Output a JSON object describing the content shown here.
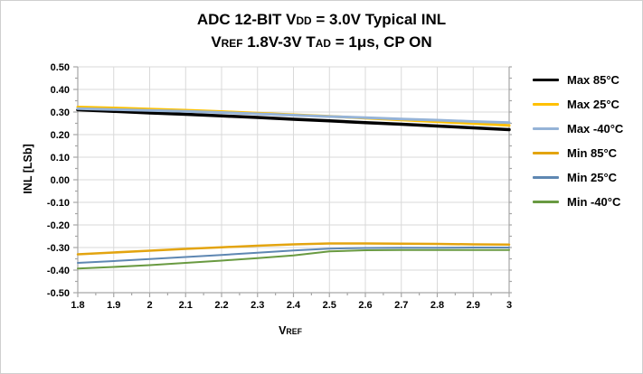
{
  "window": {
    "background": "#FFFFFF",
    "border_color": "#CFCFCF"
  },
  "title": {
    "line1_segments": [
      {
        "text": "ADC 12-BIT V"
      },
      {
        "text": "DD",
        "small": true
      },
      {
        "text": " = 3.0V Typical INL"
      }
    ],
    "line2_segments": [
      {
        "text": "V"
      },
      {
        "text": "REF",
        "small": true
      },
      {
        "text": " 1.8V-3V T"
      },
      {
        "text": "AD",
        "small": true
      },
      {
        "text": " = 1μs, CP ON"
      }
    ]
  },
  "chart_data": {
    "type": "line",
    "title": "ADC 12-BIT VDD = 3.0V Typical INL  VREF 1.8V-3V TAD = 1μs, CP ON",
    "xlabel": "VREF",
    "xlabel_segments": [
      {
        "text": "V"
      },
      {
        "text": "REF",
        "small": true
      }
    ],
    "ylabel": "INL [LSb]",
    "xlim": [
      1.8,
      3.0
    ],
    "ylim": [
      -0.5,
      0.5
    ],
    "x": [
      1.8,
      1.9,
      2.0,
      2.1,
      2.2,
      2.3,
      2.4,
      2.5,
      2.6,
      2.7,
      2.8,
      2.9,
      3.0
    ],
    "xtick_labels": [
      "1.8",
      "1.9",
      "2",
      "2.1",
      "2.2",
      "2.3",
      "2.4",
      "2.5",
      "2.6",
      "2.7",
      "2.8",
      "2.9",
      "3"
    ],
    "ytick_values": [
      0.5,
      0.4,
      0.3,
      0.2,
      0.1,
      0.0,
      -0.1,
      -0.2,
      -0.3,
      -0.4,
      -0.5
    ],
    "ytick_labels": [
      "0.50",
      "0.40",
      "0.30",
      "0.20",
      "0.10",
      "0.00",
      "-0.10",
      "-0.20",
      "-0.30",
      "-0.40",
      "-0.50"
    ],
    "minor_tick_step": 0.05,
    "grid": true,
    "legend_position": "right",
    "grid_color": "#D9D9D9",
    "axis_color": "#A6A6A6",
    "label_color": "#000000",
    "series": [
      {
        "name": "Max 85°C",
        "color": "#000000",
        "line_width": 3.5,
        "values": [
          0.31,
          0.303,
          0.296,
          0.29,
          0.283,
          0.276,
          0.268,
          0.261,
          0.253,
          0.246,
          0.238,
          0.23,
          0.222
        ]
      },
      {
        "name": "Max 25°C",
        "color": "#FFC000",
        "line_width": 3,
        "values": [
          0.322,
          0.318,
          0.313,
          0.308,
          0.302,
          0.295,
          0.288,
          0.281,
          0.273,
          0.265,
          0.257,
          0.249,
          0.241
        ]
      },
      {
        "name": "Max -40°C",
        "color": "#95B3D7",
        "line_width": 3,
        "values": [
          0.315,
          0.311,
          0.307,
          0.303,
          0.298,
          0.292,
          0.286,
          0.28,
          0.275,
          0.269,
          0.264,
          0.258,
          0.253
        ]
      },
      {
        "name": "Min 85°C",
        "color": "#E3A40F",
        "line_width": 2.5,
        "values": [
          -0.33,
          -0.322,
          -0.314,
          -0.306,
          -0.299,
          -0.292,
          -0.286,
          -0.282,
          -0.282,
          -0.283,
          -0.284,
          -0.286,
          -0.287
        ]
      },
      {
        "name": "Min 25°C",
        "color": "#5E87B2",
        "line_width": 2,
        "values": [
          -0.368,
          -0.36,
          -0.351,
          -0.342,
          -0.333,
          -0.323,
          -0.313,
          -0.305,
          -0.302,
          -0.301,
          -0.301,
          -0.3,
          -0.3
        ]
      },
      {
        "name": "Min -40°C",
        "color": "#699A41",
        "line_width": 2,
        "values": [
          -0.393,
          -0.386,
          -0.378,
          -0.368,
          -0.358,
          -0.347,
          -0.335,
          -0.317,
          -0.312,
          -0.311,
          -0.311,
          -0.311,
          -0.311
        ]
      }
    ]
  }
}
